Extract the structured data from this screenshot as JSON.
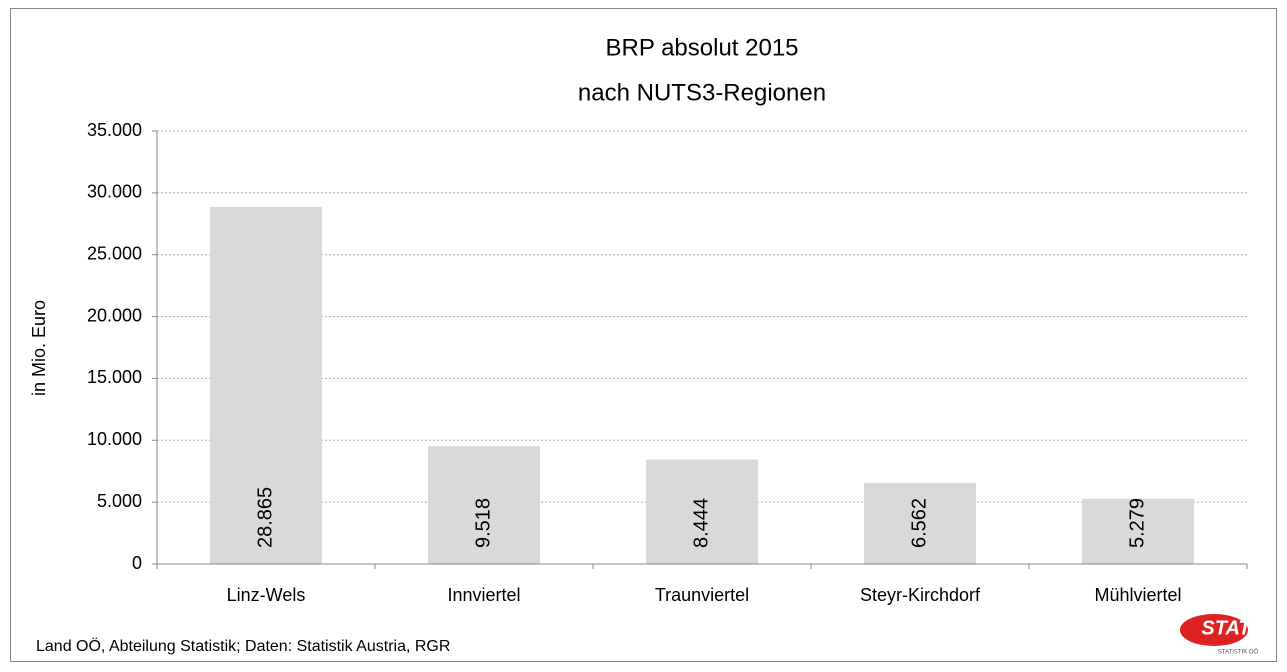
{
  "chart_data": {
    "type": "bar",
    "title": "BRP absolut 2015",
    "subtitle": "nach NUTS3-Regionen",
    "y_label": "in Mio. Euro",
    "categories": [
      "Linz-Wels",
      "Innviertel",
      "Traunviertel",
      "Steyr-Kirchdorf",
      "Mühlviertel"
    ],
    "values": [
      28865,
      9518,
      8444,
      6562,
      5279
    ],
    "value_labels": [
      "28.865",
      "9.518",
      "8.444",
      "6.562",
      "5.279"
    ],
    "color": "#d9d9d9",
    "ylim": [
      0,
      35000
    ],
    "yticks": [
      0,
      {
        "value": 5000,
        "label": "5.000"
      },
      {
        "value": 10000,
        "label": "10.000"
      },
      {
        "value": 15000,
        "label": "15.000"
      },
      {
        "value": 20000,
        "label": "20.000"
      },
      {
        "value": 25000,
        "label": "25.000"
      },
      {
        "value": 30000,
        "label": "30.000"
      },
      {
        "value": 35000,
        "label": "35.000"
      }
    ],
    "grid": true,
    "source": "Land OÖ, Abteilung Statistik; Daten: Statistik Austria, RGR",
    "logo": {
      "text": "STAT",
      "subtext": "STATISTIK OÖ"
    }
  }
}
